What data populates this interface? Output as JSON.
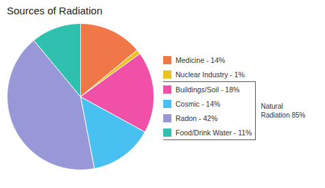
{
  "chart_data": {
    "type": "pie",
    "title": "Sources of Radiation",
    "categories": [
      "Medicine - 14%",
      "Nuclear Industry - 1%",
      "Buildings/Soil - 18%",
      "Cosmic - 14%",
      "Radon - 42%",
      "Food/Drink Water - 11%"
    ],
    "values": [
      14,
      1,
      18,
      14,
      42,
      11
    ],
    "colors": [
      "#f07848",
      "#f0c020",
      "#f050a8",
      "#48c0f0",
      "#9898d8",
      "#30c0b0"
    ],
    "legend": "right",
    "annotations": [
      {
        "text": "Natural\nRadiation 85%",
        "categories": [
          "Buildings/Soil - 18%",
          "Cosmic - 14%",
          "Radon - 42%",
          "Food/Drink Water - 11%"
        ]
      }
    ]
  }
}
